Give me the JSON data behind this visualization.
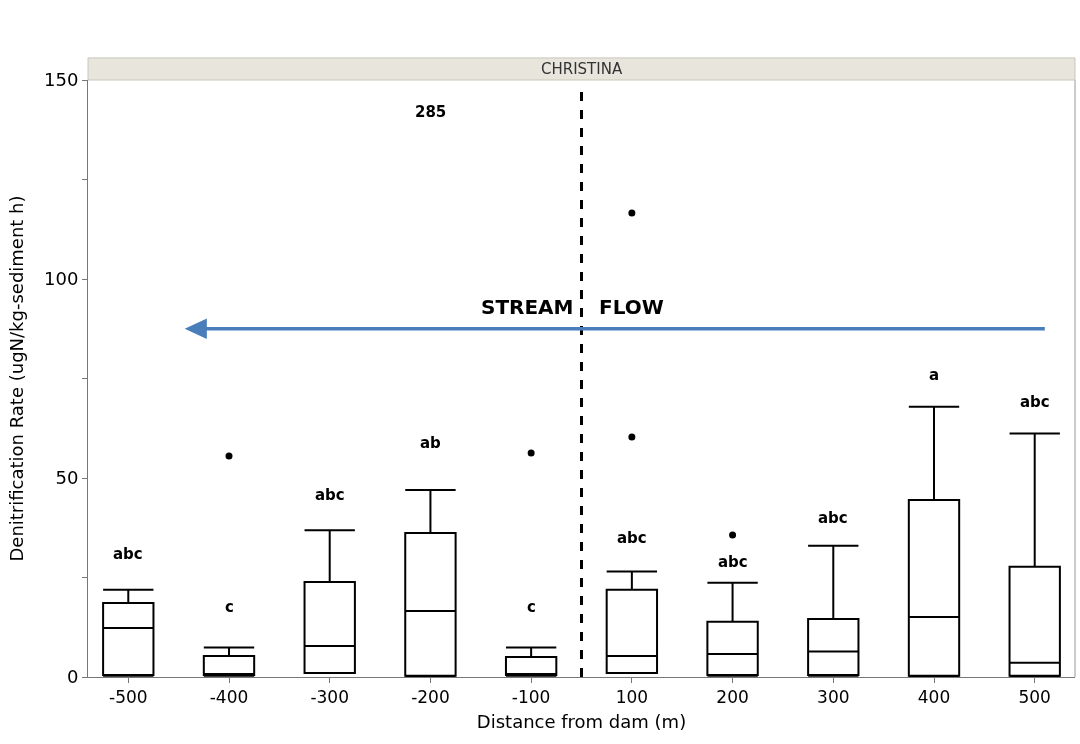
{
  "chart_data": {
    "type": "box",
    "title": "CHRISTINA",
    "xlabel": "Distance from dam (m)",
    "ylabel": "Denitrification Rate (ugN/kg-sediment h)",
    "categories": [
      "-500",
      "-400",
      "-300",
      "-200",
      "-100",
      "100",
      "200",
      "300",
      "400",
      "500"
    ],
    "boxes": [
      {
        "low": 0.3,
        "q1": 0.5,
        "median": 12.3,
        "q3": 18.6,
        "high": 21.9
      },
      {
        "low": 0.3,
        "q1": 0.5,
        "median": 0.5,
        "q3": 5.3,
        "high": 7.4,
        "outliers": [
          55.5
        ]
      },
      {
        "low": 1,
        "q1": 1,
        "median": 7.8,
        "q3": 23.9,
        "high": 36.9
      },
      {
        "low": 0,
        "q1": 0.3,
        "median": 16.6,
        "q3": 36.2,
        "high": 47
      },
      {
        "low": 0.3,
        "q1": 0.5,
        "median": 0.5,
        "q3": 5,
        "high": 7.4,
        "outliers": [
          56.3
        ]
      },
      {
        "low": 1,
        "q1": 1,
        "median": 5.3,
        "q3": 21.9,
        "high": 26.5,
        "outliers": [
          116.6,
          60.3
        ]
      },
      {
        "low": 0.3,
        "q1": 0.5,
        "median": 5.8,
        "q3": 13.9,
        "high": 23.7,
        "outliers": [
          35.7
        ]
      },
      {
        "low": 0.3,
        "q1": 0.5,
        "median": 6.4,
        "q3": 14.6,
        "high": 33
      },
      {
        "low": 0,
        "q1": 0.3,
        "median": 15.1,
        "q3": 44.5,
        "high": 67.9
      },
      {
        "low": 0,
        "q1": 0.3,
        "median": 3.6,
        "q3": 27.7,
        "high": 61.2
      }
    ],
    "ylim": [
      0,
      150
    ],
    "yticks": [
      0,
      {
        "value": 25,
        "label": null
      },
      50,
      {
        "value": 75,
        "label": null
      },
      100,
      {
        "value": 125,
        "label": null
      },
      150
    ],
    "annotations": [
      "abc",
      "c",
      "abc",
      "ab",
      "c",
      "abc",
      "abc",
      "abc",
      "a",
      "abc",
      "285",
      "STREAM",
      "FLOW"
    ]
  }
}
